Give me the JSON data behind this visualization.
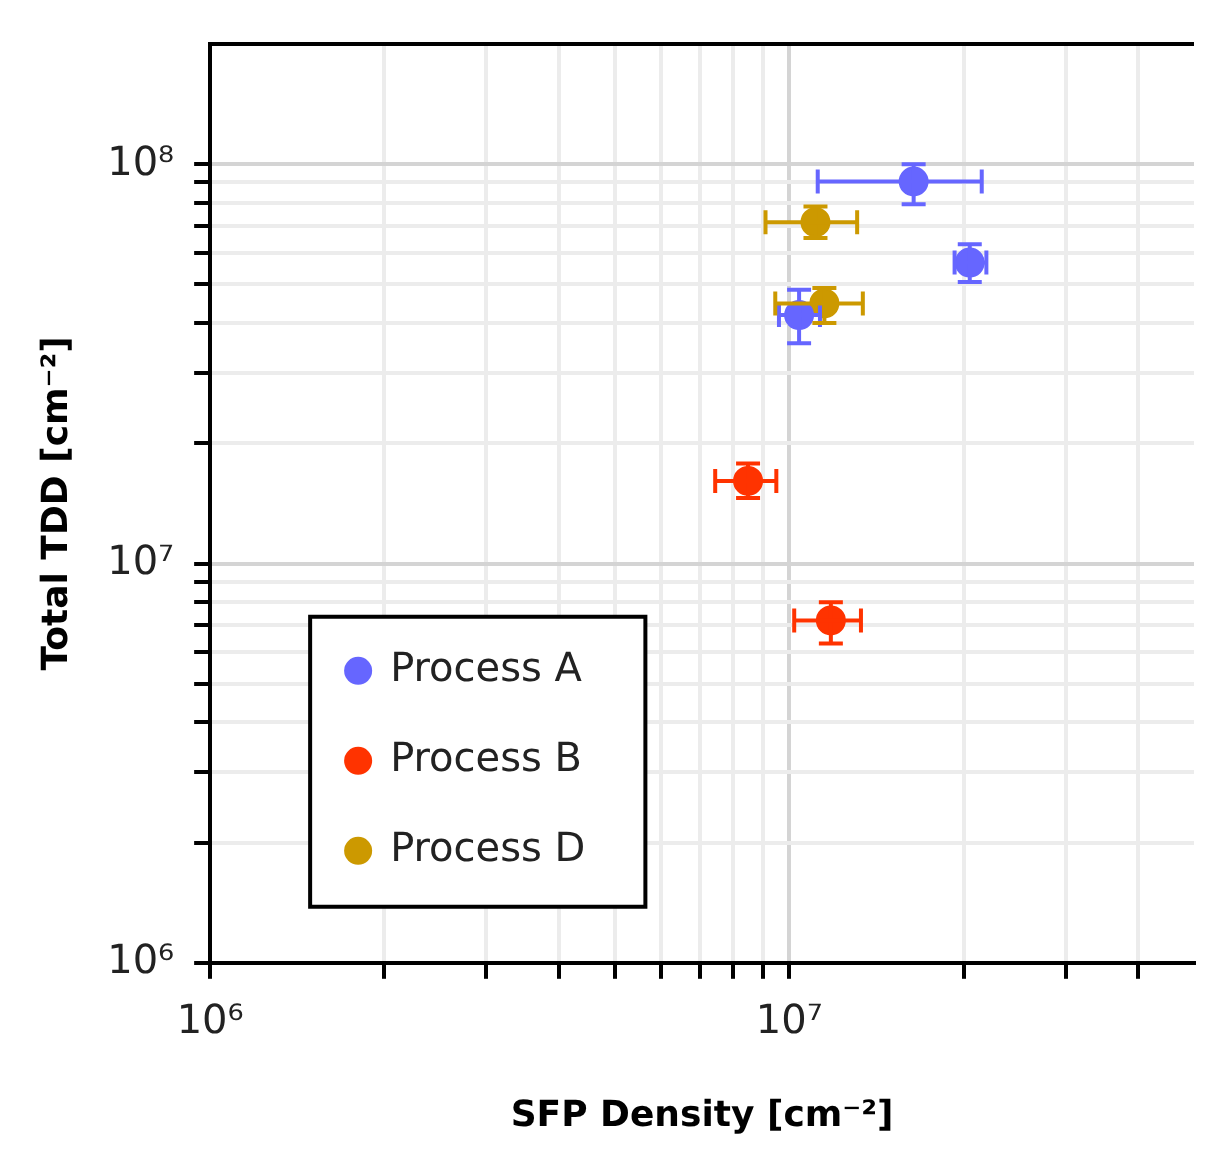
{
  "chart_data": {
    "type": "scatter",
    "xlabel": "SFP Density [cm⁻²]",
    "ylabel": "Total TDD [cm⁻²]",
    "log": "xy",
    "xlim": [
      1000000,
      50000000
    ],
    "ylim": [
      1000000,
      200000000
    ],
    "xticks": [
      {
        "value": 1000000,
        "label": "10⁶"
      },
      {
        "value": 2000000,
        "label": null
      },
      {
        "value": 3000000,
        "label": null
      },
      {
        "value": 4000000,
        "label": null
      },
      {
        "value": 5000000,
        "label": null
      },
      {
        "value": 6000000,
        "label": null
      },
      {
        "value": 7000000,
        "label": null
      },
      {
        "value": 8000000,
        "label": null
      },
      {
        "value": 9000000,
        "label": null
      },
      {
        "value": 10000000,
        "label": "10⁷"
      },
      {
        "value": 20000000,
        "label": null
      },
      {
        "value": 30000000,
        "label": null
      },
      {
        "value": 40000000,
        "label": null
      }
    ],
    "yticks": [
      {
        "value": 1000000,
        "label": "10⁶"
      },
      {
        "value": 2000000,
        "label": null
      },
      {
        "value": 3000000,
        "label": null
      },
      {
        "value": 4000000,
        "label": null
      },
      {
        "value": 5000000,
        "label": null
      },
      {
        "value": 6000000,
        "label": null
      },
      {
        "value": 7000000,
        "label": null
      },
      {
        "value": 8000000,
        "label": null
      },
      {
        "value": 9000000,
        "label": null
      },
      {
        "value": 10000000,
        "label": "10⁷"
      },
      {
        "value": 20000000,
        "label": null
      },
      {
        "value": 30000000,
        "label": null
      },
      {
        "value": 40000000,
        "label": null
      },
      {
        "value": 50000000,
        "label": null
      },
      {
        "value": 60000000,
        "label": null
      },
      {
        "value": 70000000,
        "label": null
      },
      {
        "value": 80000000,
        "label": null
      },
      {
        "value": 90000000,
        "label": null
      },
      {
        "value": 100000000,
        "label": "10⁸"
      }
    ],
    "grid": true,
    "legend": "bottom left",
    "marker": "circle",
    "series": [
      {
        "name": "Process A",
        "color": "#6666ff",
        "x": [
          16400000,
          20500000,
          10400000
        ],
        "values": [
          90500000,
          56700000,
          41900000
        ],
        "xerrors": [
          [
            11200000,
            21500000
          ],
          [
            19300000,
            21900000
          ],
          [
            9600000,
            11300000
          ]
        ],
        "errors": [
          [
            79400000,
            100000000
          ],
          [
            50700000,
            63000000
          ],
          [
            35600000,
            48500000
          ]
        ]
      },
      {
        "name": "Process B",
        "color": "#ff3300",
        "x": [
          8490000,
          11800000
        ],
        "values": [
          16100000,
          7200000
        ],
        "xerrors": [
          [
            7450000,
            9500000
          ],
          [
            10200000,
            13300000
          ]
        ],
        "errors": [
          [
            14600000,
            17800000
          ],
          [
            6300000,
            8000000
          ]
        ]
      },
      {
        "name": "Process D",
        "color": "#cc9900",
        "x": [
          11100000,
          11500000
        ],
        "values": [
          71600000,
          44800000
        ],
        "xerrors": [
          [
            9100000,
            13100000
          ],
          [
            9460000,
            13400000
          ]
        ],
        "errors": [
          [
            65300000,
            78300000
          ],
          [
            40000000,
            49000000
          ]
        ]
      }
    ]
  }
}
